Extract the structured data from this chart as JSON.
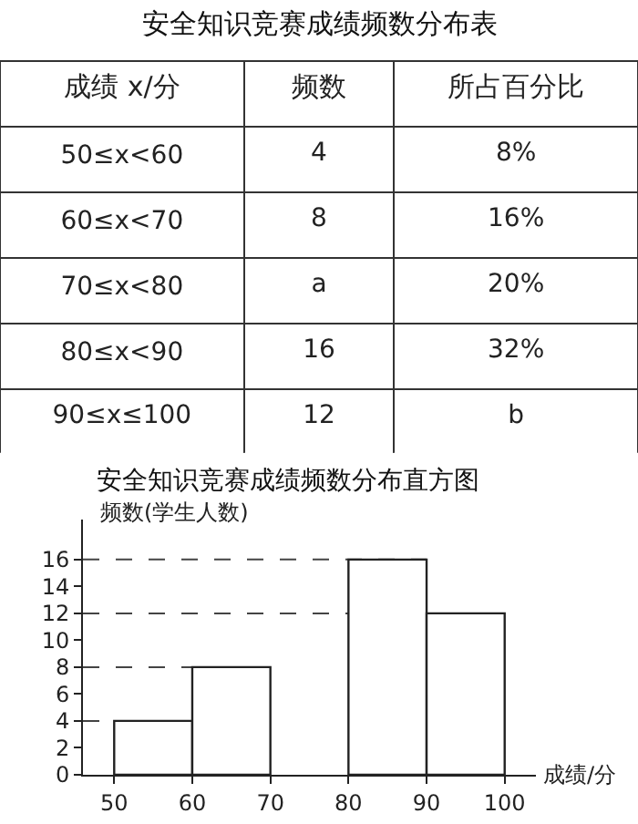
{
  "chart_data": [
    {
      "type": "other",
      "title": "安全知识竞赛成绩频数分布表",
      "categories": [
        "成绩 x/分",
        "频数",
        "所占百分比"
      ],
      "cell_labels": [
        [
          "50≤x<60",
          "4",
          "8%"
        ],
        [
          "60≤x<70",
          "8",
          "16%"
        ],
        [
          "70≤x<80",
          "a",
          "20%"
        ],
        [
          "80≤x<90",
          "16",
          "32%"
        ],
        [
          "90≤x≤100",
          "12",
          "b"
        ]
      ]
    },
    {
      "type": "histogram",
      "title": "安全知识竞赛成绩频数分布直方图",
      "xlabel": "成绩/分",
      "ylabel": "频数(学生人数)",
      "bins": [
        50,
        60,
        70,
        80,
        90,
        100
      ],
      "values": [
        4,
        8,
        null,
        16,
        12
      ],
      "color": "#ffffff",
      "xlim": [
        46,
        104
      ],
      "xticks": [
        50,
        60,
        70,
        80,
        90,
        100
      ],
      "ylim": [
        0,
        19
      ],
      "yticks": [
        0,
        2,
        4,
        6,
        8,
        10,
        12,
        14,
        16
      ],
      "grid": false,
      "ref_lines": [
        {
          "axis": "y",
          "value": 4,
          "line_style": "dashed"
        },
        {
          "axis": "y",
          "value": 8,
          "line_style": "dashed"
        },
        {
          "axis": "y",
          "value": 12,
          "line_style": "dashed"
        },
        {
          "axis": "y",
          "value": 16,
          "line_style": "dashed"
        }
      ]
    }
  ]
}
